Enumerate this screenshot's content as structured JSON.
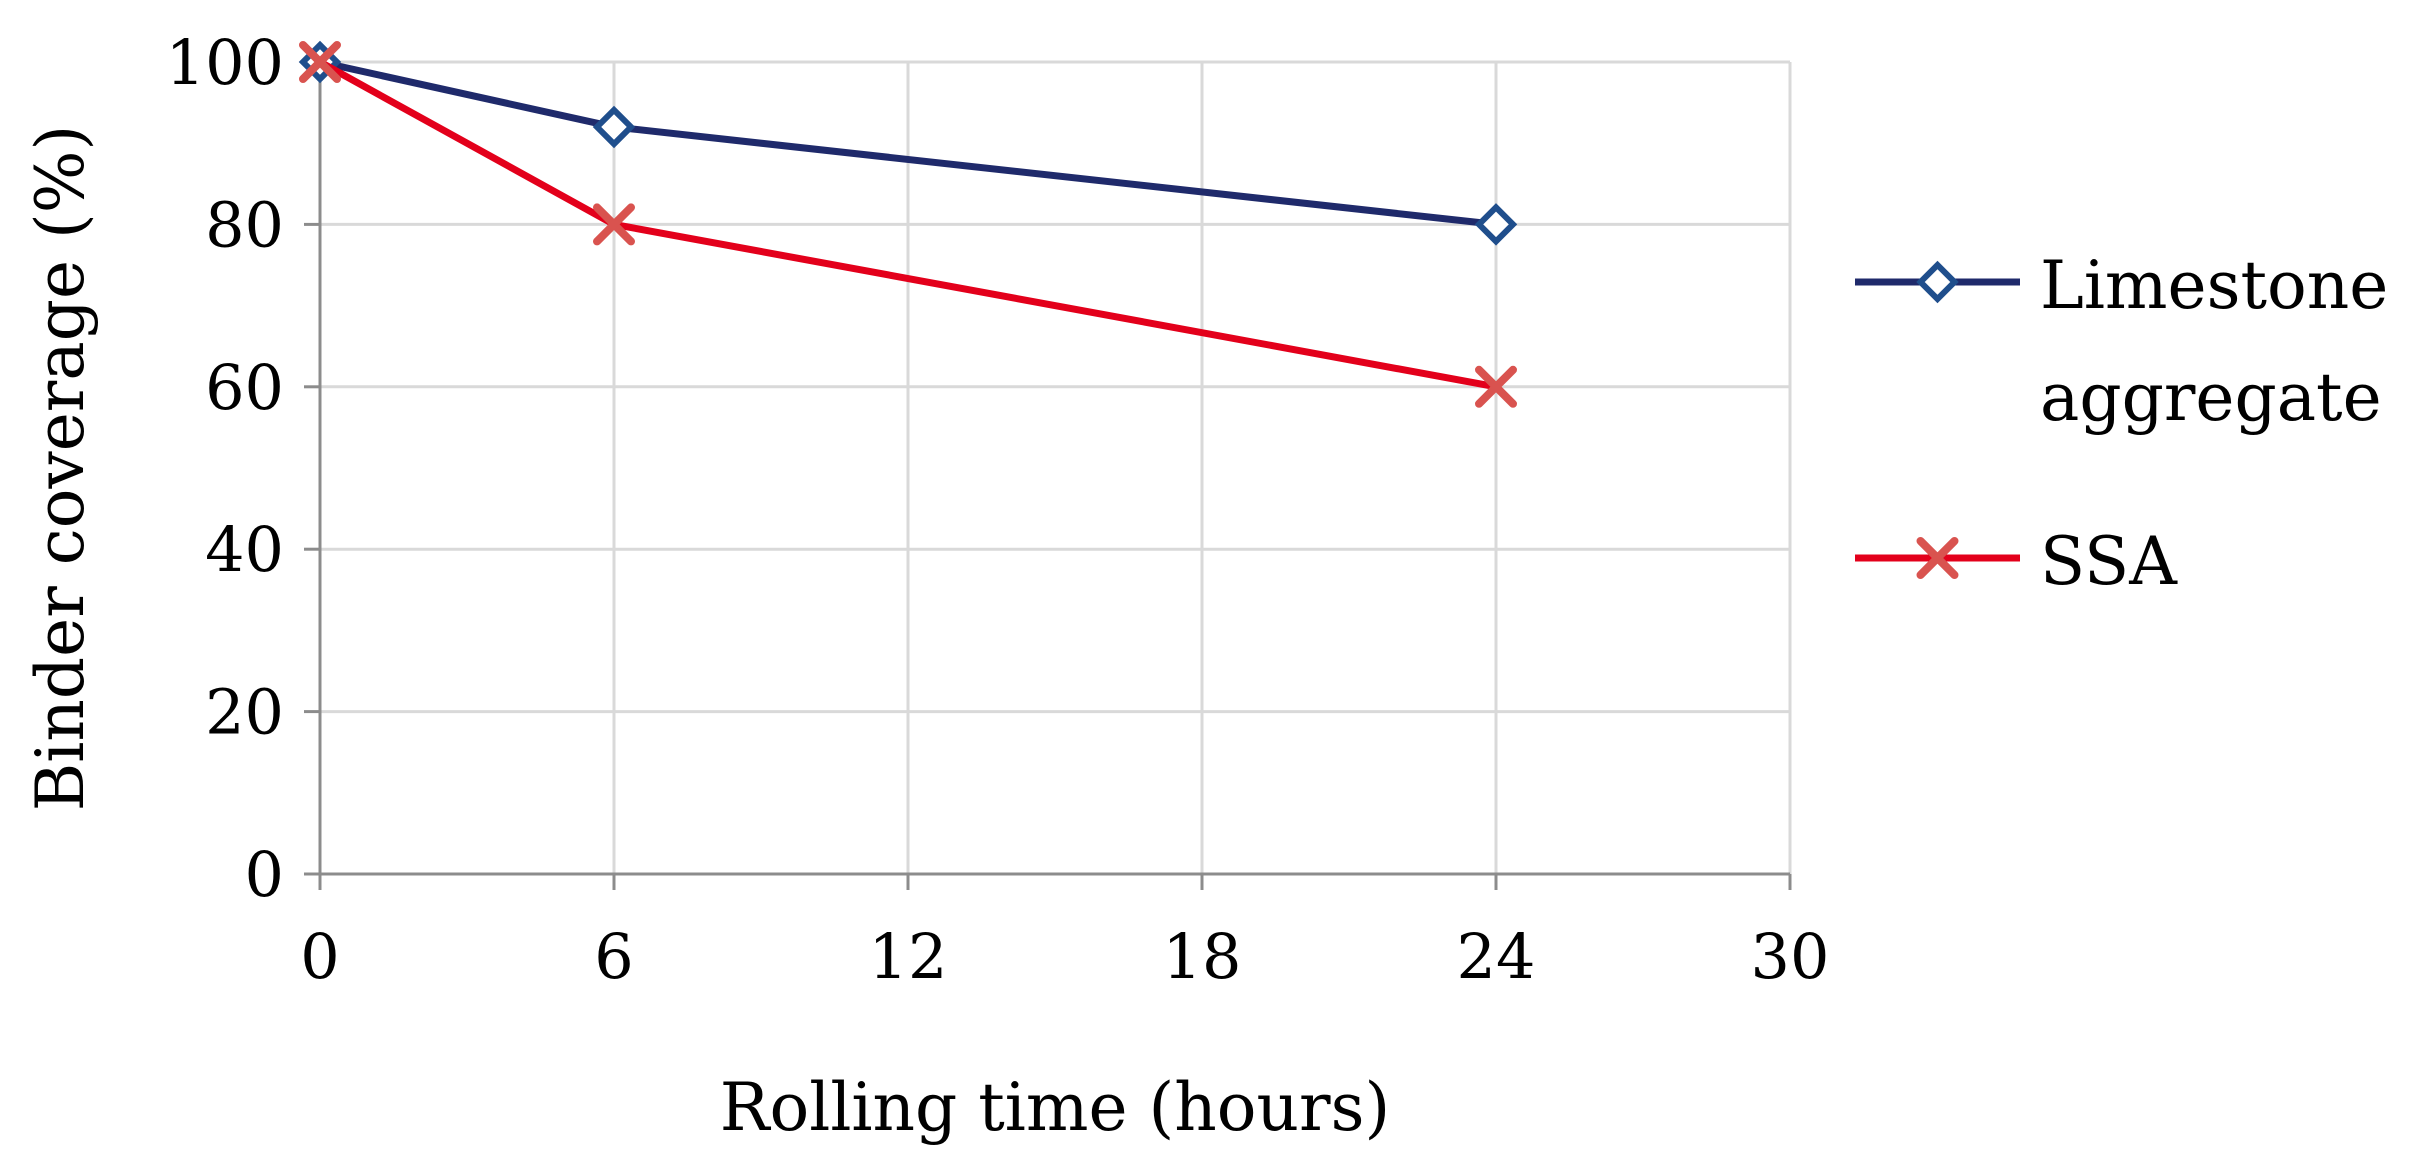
{
  "chart_data": {
    "type": "line",
    "xlabel": "Rolling time (hours)",
    "ylabel": "Binder coverage (%)",
    "xlim": [
      0,
      30
    ],
    "ylim": [
      0,
      100
    ],
    "x_ticks": [
      0,
      6,
      12,
      18,
      24,
      30
    ],
    "y_ticks": [
      0,
      20,
      40,
      60,
      80,
      100
    ],
    "grid": true,
    "legend_position": "right",
    "series": [
      {
        "name": "Limestone aggregate",
        "name_lines": [
          "Limestone",
          "aggregate"
        ],
        "marker": "diamond",
        "color": "#1f2a6b",
        "marker_color": "#1f4e8c",
        "x": [
          0,
          6,
          24
        ],
        "y": [
          100,
          92,
          80
        ]
      },
      {
        "name": "SSA",
        "name_lines": [
          "SSA"
        ],
        "marker": "x",
        "color": "#e3001b",
        "marker_color": "#d9534f",
        "x": [
          0,
          6,
          24
        ],
        "y": [
          100,
          80,
          60
        ]
      }
    ]
  }
}
